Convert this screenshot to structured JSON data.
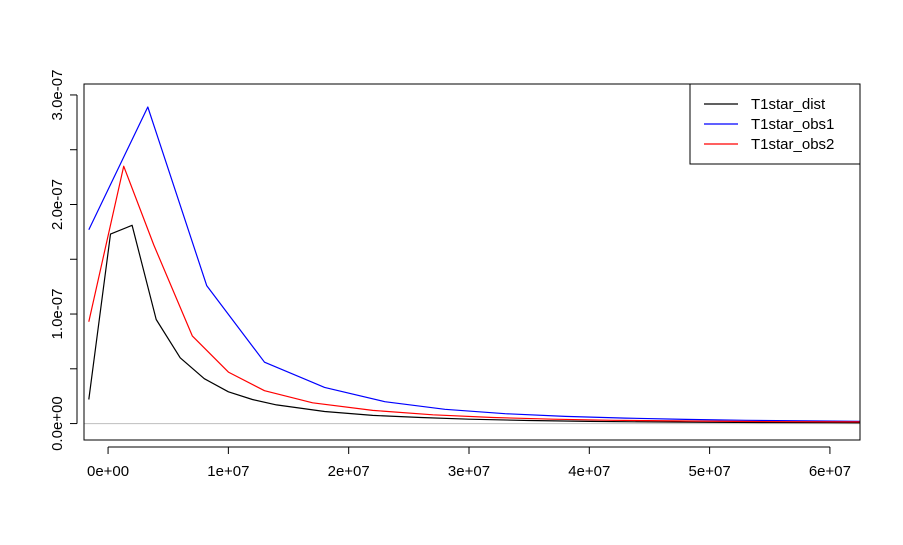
{
  "chart_data": {
    "type": "line",
    "title": "",
    "xlabel": "",
    "ylabel": "",
    "xlim": [
      -2000000,
      62500000
    ],
    "ylim": [
      -1.5e-08,
      3.1e-07
    ],
    "x_ticks": [
      0,
      10000000,
      20000000,
      30000000,
      40000000,
      50000000,
      60000000
    ],
    "x_tick_labels": [
      "0e+00",
      "1e+07",
      "2e+07",
      "3e+07",
      "4e+07",
      "5e+07",
      "6e+07"
    ],
    "y_ticks": [
      0,
      5e-08,
      1e-07,
      1.5e-07,
      2e-07,
      2.5e-07,
      3e-07
    ],
    "y_tick_labels": [
      "0.0e+00",
      "",
      "1.0e-07",
      "",
      "2.0e-07",
      "",
      "3.0e-07"
    ],
    "grid": false,
    "reference_line": {
      "y": 0,
      "color": "#bebebe"
    },
    "legend": {
      "placement": "top-right",
      "entries": [
        "T1star_dist",
        "T1star_obs1",
        "T1star_obs2"
      ]
    },
    "series": [
      {
        "name": "T1star_dist",
        "color": "#000000",
        "x": [
          -1600000,
          200000,
          2000000,
          4000000,
          6000000,
          8000000,
          10000000,
          12000000,
          14000000,
          18000000,
          22000000,
          26000000,
          30000000,
          35000000,
          40000000,
          45000000,
          50000000,
          55000000,
          60000000,
          62500000
        ],
        "y": [
          2.2e-08,
          1.73e-07,
          1.81e-07,
          9.5e-08,
          6e-08,
          4.1e-08,
          2.9e-08,
          2.2e-08,
          1.7e-08,
          1.1e-08,
          7.5e-09,
          5.5e-09,
          4e-09,
          2.8e-09,
          2e-09,
          1.5e-09,
          1.2e-09,
          1e-09,
          8e-10,
          7e-10
        ]
      },
      {
        "name": "T1star_obs1",
        "color": "#0000ff",
        "x": [
          -1600000,
          3300000,
          8200000,
          13000000,
          18000000,
          23000000,
          28000000,
          33000000,
          38000000,
          43000000,
          48000000,
          53000000,
          58000000,
          62500000
        ],
        "y": [
          1.77e-07,
          2.89e-07,
          1.26e-07,
          5.6e-08,
          3.3e-08,
          2e-08,
          1.3e-08,
          9e-09,
          6.5e-09,
          5e-09,
          3.8e-09,
          3e-09,
          2.5e-09,
          2.1e-09
        ]
      },
      {
        "name": "T1star_obs2",
        "color": "#ff0000",
        "x": [
          -1600000,
          1300000,
          3800000,
          7000000,
          10000000,
          13000000,
          17000000,
          22000000,
          27000000,
          32000000,
          37000000,
          42000000,
          47000000,
          52000000,
          57000000,
          62500000
        ],
        "y": [
          9.3e-08,
          2.35e-07,
          1.63e-07,
          8e-08,
          4.7e-08,
          3e-08,
          1.9e-08,
          1.2e-08,
          8e-09,
          5.5e-09,
          4e-09,
          3e-09,
          2.4e-09,
          2e-09,
          1.7e-09,
          1.5e-09
        ]
      }
    ]
  }
}
